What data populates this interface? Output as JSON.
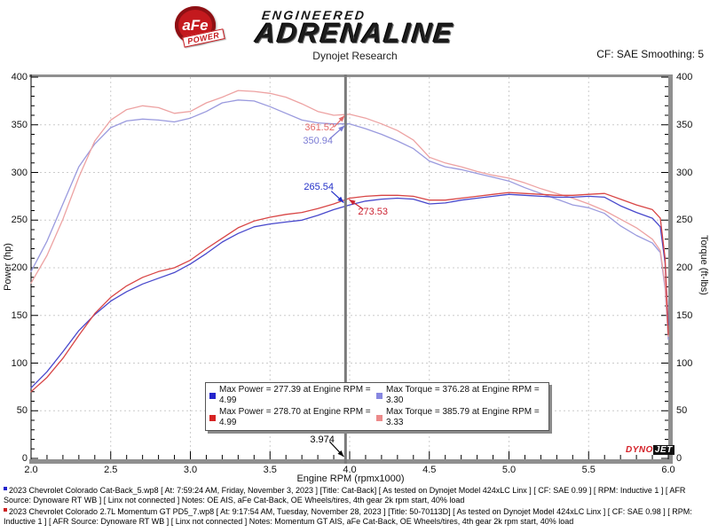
{
  "header": {
    "title": "Dynojet Research",
    "cf_text": "CF: SAE Smoothing: 5",
    "logo": {
      "badge_text": "aFe",
      "badge_sub": "POWER",
      "tagline": "ENGINEERED",
      "brand": "ADRENALINE"
    }
  },
  "dynojet_badge": {
    "part1": "DYNO",
    "part2": "JET"
  },
  "chart_data": {
    "type": "line",
    "title": "Dynojet Research",
    "xlabel": "Engine RPM (rpmx1000)",
    "ylabel_left": "Power (hp)",
    "ylabel_right": "Torque (ft-lbs)",
    "xlim": [
      2.0,
      6.0
    ],
    "ylim": [
      0,
      400
    ],
    "x_major_ticks": [
      2.0,
      2.5,
      3.0,
      3.5,
      4.0,
      4.5,
      5.0,
      5.5,
      6.0
    ],
    "y_major_ticks": [
      0,
      50,
      100,
      150,
      200,
      250,
      300,
      350,
      400
    ],
    "x_minor_step": 0.1,
    "y_minor_step": 10,
    "grid": "dashed",
    "rpm": [
      2.0,
      2.1,
      2.2,
      2.3,
      2.4,
      2.5,
      2.6,
      2.7,
      2.8,
      2.9,
      3.0,
      3.1,
      3.2,
      3.3,
      3.4,
      3.5,
      3.6,
      3.7,
      3.8,
      3.9,
      4.0,
      4.1,
      4.2,
      4.3,
      4.4,
      4.5,
      4.6,
      4.7,
      4.8,
      4.9,
      5.0,
      5.1,
      5.2,
      5.3,
      5.4,
      5.5,
      5.6,
      5.7,
      5.8,
      5.9,
      5.95,
      5.98,
      6.0
    ],
    "series": [
      {
        "id": "torque-catback",
        "axis": "right",
        "color": "#9a9ade",
        "values": [
          196,
          228,
          267,
          306,
          330,
          347,
          354,
          356,
          355,
          353,
          357,
          364,
          373,
          376,
          375,
          369,
          362,
          355,
          352,
          351,
          351,
          346,
          340,
          333,
          325,
          312,
          306,
          303,
          299,
          295,
          291,
          284,
          278,
          272,
          266,
          263,
          257,
          244,
          234,
          226,
          216,
          178,
          125
        ]
      },
      {
        "id": "torque-momentum",
        "axis": "right",
        "color": "#eda2a2",
        "values": [
          184,
          213,
          251,
          295,
          333,
          355,
          366,
          370,
          368,
          362,
          364,
          373,
          379,
          386,
          385,
          383,
          379,
          372,
          364,
          360,
          361,
          357,
          351,
          344,
          334,
          316,
          310,
          306,
          301,
          297,
          294,
          289,
          283,
          278,
          273,
          267,
          260,
          251,
          242,
          230,
          218,
          182,
          128
        ]
      },
      {
        "id": "power-catback",
        "axis": "left",
        "color": "#4848cc",
        "values": [
          74,
          91,
          112,
          134,
          151,
          165,
          175,
          183,
          189,
          195,
          204,
          215,
          227,
          236,
          243,
          246,
          248,
          250,
          255,
          261,
          266,
          270,
          272,
          273,
          272,
          267,
          268,
          271,
          273,
          275,
          277,
          276,
          275,
          274,
          274,
          275,
          274,
          265,
          258,
          252,
          243,
          205,
          140
        ]
      },
      {
        "id": "power-momentum",
        "axis": "left",
        "color": "#d84545",
        "values": [
          70,
          85,
          105,
          129,
          152,
          169,
          181,
          190,
          196,
          200,
          208,
          220,
          231,
          242,
          249,
          253,
          256,
          258,
          262,
          267,
          273,
          275,
          276,
          276,
          275,
          271,
          271,
          273,
          275,
          277,
          279,
          278,
          277,
          276,
          276,
          277,
          278,
          272,
          266,
          261,
          252,
          210,
          130
        ]
      }
    ],
    "cursor": {
      "rpm": 3.974,
      "rpm_label": "3.974",
      "readouts": [
        {
          "id": "cursor-torque-momentum",
          "label": "361.52",
          "value": 361.52,
          "color": "#e46a6a"
        },
        {
          "id": "cursor-torque-catback",
          "label": "350.94",
          "value": 350.94,
          "color": "#7b7bd4"
        },
        {
          "id": "cursor-power-catback",
          "label": "265.54",
          "value": 265.54,
          "color": "#2330c8"
        },
        {
          "id": "cursor-power-momentum",
          "label": "273.53",
          "value": 273.53,
          "color": "#cc2433"
        }
      ]
    },
    "legend": {
      "position": "bottom-center",
      "entries": [
        {
          "swatch": "#2525cc",
          "label": "Max Power = 277.39 at Engine RPM = 4.99"
        },
        {
          "swatch": "#8787e0",
          "label": "Max Torque = 376.28 at Engine RPM = 3.30"
        },
        {
          "swatch": "#d62323",
          "label": "Max Power = 278.70 at Engine RPM = 4.99"
        },
        {
          "swatch": "#ec8a8a",
          "label": "Max Torque = 385.79 at Engine RPM = 3.33"
        }
      ]
    }
  },
  "footer": {
    "entries": [
      {
        "marker_color": "#2222cc",
        "text": "2023 Chevrolet Colorado Cat-Back_5.wp8 [ At: 7:59:24 AM, Friday, November 3, 2023 ] [Title: Cat-Back]  [ As tested on Dynojet Model 424xLC Linx ] [ CF: SAE 0.99 ] [ RPM: Inductive 1 ] [ AFR Source: Dynoware RT WB ] [ Linx not connected ] Notes: OE AIS, aFe Cat-Back, OE Wheels/tires, 4th gear 2k rpm start, 40% load"
      },
      {
        "marker_color": "#cc2222",
        "text": "2023 Chevrolet Colorado 2.7L Momentum GT PD5_7.wp8 [ At: 9:17:54 AM, Tuesday, November 28, 2023 ] [Title: 50-70113D]  [ As tested on Dynojet Model 424xLC Linx ] [ CF: SAE 0.98 ] [ RPM: Inductive 1 ] [ AFR Source: Dynoware RT WB ] [ Linx not connected ] Notes: Momentum GT AIS, aFe Cat-Back, OE Wheels/tires, 4th gear 2k rpm start, 40% load"
      }
    ]
  }
}
